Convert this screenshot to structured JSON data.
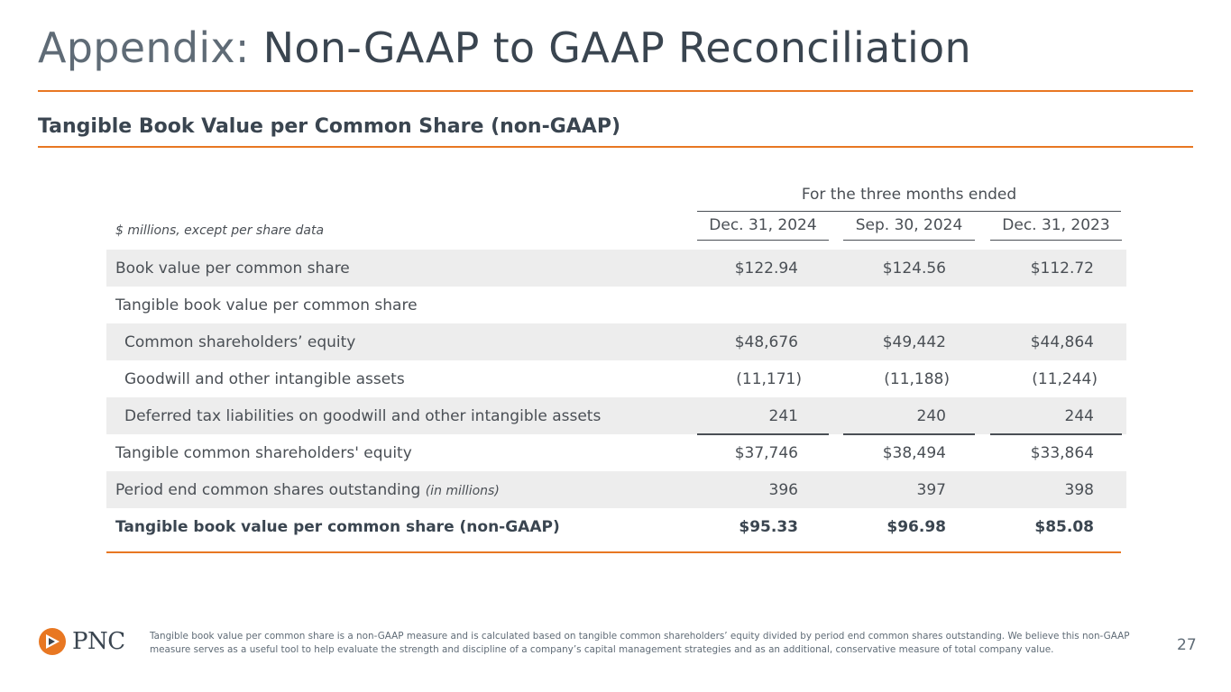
{
  "title": {
    "prefix": "Appendix:",
    "main": "Non-GAAP to GAAP Reconciliation"
  },
  "subtitle": "Tangible Book Value per Common Share (non-GAAP)",
  "table": {
    "period_header": "For the three months ended",
    "units_note": "$ millions, except per share data",
    "columns": [
      "Dec. 31, 2024",
      "Sep. 30, 2024",
      "Dec. 31, 2023"
    ],
    "rows": [
      {
        "label": "Book value per common share",
        "values": [
          "$122.94",
          "$124.56",
          "$112.72"
        ]
      },
      {
        "label": "Tangible book value per common share",
        "values": [
          "",
          "",
          ""
        ]
      },
      {
        "label": "Common shareholders’ equity",
        "values": [
          "$48,676",
          "$49,442",
          "$44,864"
        ]
      },
      {
        "label": "Goodwill and other intangible assets",
        "values": [
          "(11,171)",
          "(11,188)",
          "(11,244)"
        ]
      },
      {
        "label": "Deferred tax liabilities on goodwill and other intangible assets",
        "values": [
          "241",
          "240",
          "244"
        ]
      },
      {
        "label": "Tangible common shareholders' equity",
        "values": [
          "$37,746",
          "$38,494",
          "$33,864"
        ]
      },
      {
        "label": "Period end common shares outstanding",
        "label_note": "(in millions)",
        "values": [
          "396",
          "397",
          "398"
        ]
      },
      {
        "label": "Tangible book value per common share (non-GAAP)",
        "values": [
          "$95.33",
          "$96.98",
          "$85.08"
        ]
      }
    ]
  },
  "footer": {
    "logo_text": "PNC",
    "note": "Tangible book value per common share is a non-GAAP measure and is calculated based on tangible common shareholders’ equity divided by period end common shares outstanding. We believe this non-GAAP measure serves as a useful tool to help evaluate the strength and discipline of a company’s capital management strategies and as an additional, conservative measure of total company value.",
    "page_number": "27"
  },
  "colors": {
    "accent": "#e87722",
    "text": "#4a4f55",
    "shade": "#ededed"
  }
}
